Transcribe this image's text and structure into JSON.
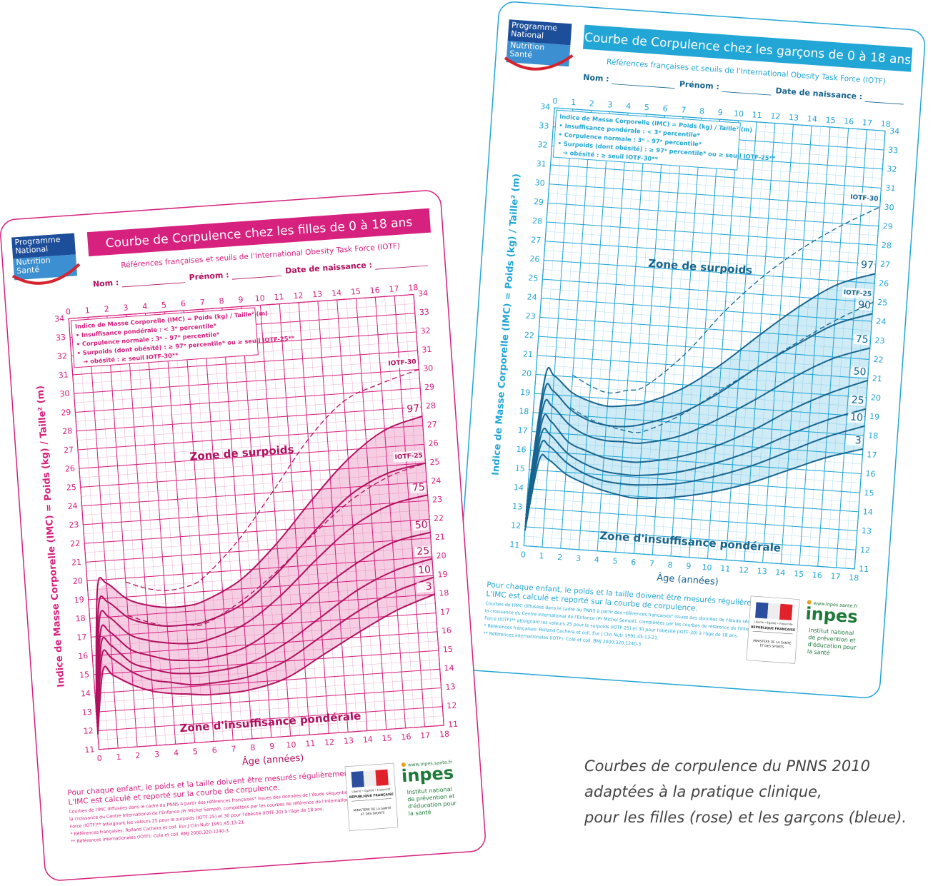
{
  "chart_data": [
    {
      "type": "line",
      "color": "#d6217e",
      "line_color": "#b0105f",
      "title": "Courbe de Corpulence chez les filles de 0 à 18 ans",
      "subtitle": "Références françaises et seuils de l'International Obesity Task Force (IOTF)",
      "logo": [
        "Programme",
        "National",
        "Nutrition",
        "Santé"
      ],
      "form_fields": [
        "Nom :",
        "Prénom :",
        "Date de naissance :"
      ],
      "ylabel": "Indice de Masse Corporelle (IMC) = Poids (kg) / Taille² (m)",
      "xlabel": "Âge (années)",
      "legend_box": [
        "Indice de Masse Corporelle (IMC) = Poids (kg) / Taille² (m)",
        "• Insuffisance pondérale : < 3ᵉ percentile*",
        "• Corpulence normale : 3ᵉ – 97ᵉ percentile*",
        "• Surpoids (dont obésité) : ≥ 97ᵉ percentile* ou ≥ seuil IOTF-25**",
        "➔ obésité : ≥ seuil IOTF-30**"
      ],
      "annotations": [
        "Zone de surpoids",
        "Zone d'insuffisance pondérale"
      ],
      "notes": [
        "Pour chaque enfant, le poids et la taille doivent être mesurés régulièrement.",
        "L'IMC est calculé et reporté sur la courbe de corpulence.",
        "Courbes de l'IMC diffusées dans le cadre du PNNS à partir des références françaises* issues des données de l'étude séquentielle française de",
        "la croissance du Centre International de l'Enfance (Pr Michel Sempé), complétées par les courbes de référence de l'International Obesity Task",
        "Force (IOTF)** atteignant les valeurs 25 pour le surpoids (IOTF-25) et 30 pour l'obésité (IOTF-30) à l'âge de 18 ans.",
        "* Références françaises: Rolland Cachera et coll. Eur J Clin Nutr 1991;45:13-21.",
        "** Références internationales (IOTF): Cole et coll. BMJ 2000;320:1240-3."
      ],
      "ministry": [
        "Liberté • Égalité • Fraternité",
        "RÉPUBLIQUE FRANÇAISE",
        "MINISTÈRE DE LA SANTÉ",
        "ET DES SPORTS"
      ],
      "inpes": [
        "www.inpes.sante.fr",
        "inpes",
        "Institut national",
        "de prévention et",
        "d'éducation pour",
        "la santé"
      ],
      "x": [
        0,
        0.5,
        1,
        2,
        3,
        4,
        5,
        6,
        8,
        10,
        12,
        14,
        16,
        18
      ],
      "series": [
        {
          "name": "97",
          "values": [
            13.0,
            19.5,
            19.8,
            18.9,
            18.5,
            18.3,
            18.3,
            18.5,
            19.5,
            21.3,
            23.5,
            25.5,
            26.9,
            27.5
          ]
        },
        {
          "name": "90",
          "values": [
            12.8,
            18.6,
            18.8,
            17.9,
            17.5,
            17.3,
            17.3,
            17.4,
            18.2,
            19.8,
            21.8,
            23.6,
            24.6,
            25.0
          ]
        },
        {
          "name": "75",
          "values": [
            12.6,
            17.9,
            18.0,
            17.0,
            16.6,
            16.4,
            16.3,
            16.4,
            17.1,
            18.5,
            20.3,
            21.9,
            22.9,
            23.3
          ]
        },
        {
          "name": "50",
          "values": [
            12.4,
            17.2,
            17.2,
            16.2,
            15.8,
            15.5,
            15.4,
            15.4,
            15.9,
            17.1,
            18.6,
            19.9,
            20.9,
            21.3
          ]
        },
        {
          "name": "25",
          "values": [
            12.2,
            16.6,
            16.5,
            15.5,
            15.1,
            14.8,
            14.7,
            14.7,
            15.0,
            15.9,
            17.2,
            18.5,
            19.4,
            19.9
          ]
        },
        {
          "name": "10",
          "values": [
            12.0,
            16.0,
            15.8,
            15.0,
            14.5,
            14.3,
            14.1,
            14.1,
            14.3,
            15.0,
            16.2,
            17.4,
            18.3,
            18.9
          ]
        },
        {
          "name": "3",
          "values": [
            11.8,
            15.2,
            14.9,
            14.3,
            13.9,
            13.7,
            13.6,
            13.5,
            13.6,
            14.1,
            15.2,
            16.3,
            17.3,
            18.0
          ]
        },
        {
          "name": "IOTF-25",
          "style": "dashed",
          "values": [
            null,
            null,
            null,
            18.0,
            17.6,
            17.3,
            17.3,
            17.3,
            18.4,
            19.9,
            21.7,
            23.3,
            24.4,
            25.0
          ]
        },
        {
          "name": "IOTF-30",
          "style": "dashed",
          "values": [
            null,
            null,
            null,
            19.8,
            19.4,
            19.2,
            19.3,
            19.7,
            21.6,
            24.1,
            26.7,
            28.6,
            29.4,
            30.0
          ]
        }
      ],
      "xlim": [
        0,
        18
      ],
      "ylim": [
        11,
        34
      ],
      "xticks": [
        0,
        1,
        2,
        3,
        4,
        5,
        6,
        7,
        8,
        9,
        10,
        11,
        12,
        13,
        14,
        15,
        16,
        17,
        18
      ],
      "yticks": [
        11,
        12,
        13,
        14,
        15,
        16,
        17,
        18,
        19,
        20,
        21,
        22,
        23,
        24,
        25,
        26,
        27,
        28,
        29,
        30,
        31,
        32,
        33,
        34
      ],
      "grid": true
    },
    {
      "type": "line",
      "color": "#22a6d6",
      "line_color": "#17648f",
      "title": "Courbe de Corpulence chez les garçons de 0 à 18 ans",
      "subtitle": "Références françaises et seuils de l'International Obesity Task Force (IOTF)",
      "logo": [
        "Programme",
        "National",
        "Nutrition",
        "Santé"
      ],
      "form_fields": [
        "Nom :",
        "Prénom :",
        "Date de naissance :"
      ],
      "ylabel": "Indice de Masse Corporelle (IMC) = Poids (kg) / Taille² (m)",
      "xlabel": "Âge (années)",
      "legend_box": [
        "Indice de Masse Corporelle (IMC) = Poids (kg) / Taille² (m)",
        "• Insuffisance pondérale : < 3ᵉ percentile*",
        "• Corpulence normale : 3ᵉ – 97ᵉ percentile*",
        "• Surpoids (dont obésité) : ≥ 97ᵉ percentile* ou ≥ seuil IOTF-25**",
        "➔ obésité : ≥ seuil IOTF-30**"
      ],
      "annotations": [
        "Zone de surpoids",
        "Zone d'insuffisance pondérale"
      ],
      "notes": [
        "Pour chaque enfant, le poids et la taille doivent être mesurés régulièrement.",
        "L'IMC est calculé et reporté sur la courbe de corpulence.",
        "Courbes de l'IMC diffusées dans le cadre du PNNS à partir des références françaises* issues des données de l'étude séquentielle française de",
        "la croissance du Centre International de l'Enfance (Pr Michel Sempé), complétées par les courbes de référence de l'International Obesity Task",
        "Force (IOTF)** atteignant les valeurs 25 pour le surpoids (IOTF-25) et 30 pour l'obésité (IOTF-30) à l'âge de 18 ans.",
        "* Références françaises: Rolland Cachera et coll. Eur J Clin Nutr 1991;45:13-21.",
        "** Références internationales (IOTF): Cole et coll. BMJ 2000;320:1240-3."
      ],
      "ministry": [
        "Liberté • Égalité • Fraternité",
        "RÉPUBLIQUE FRANÇAISE",
        "MINISTÈRE DE LA SANTÉ",
        "ET DES SPORTS"
      ],
      "inpes": [
        "www.inpes.sante.fr",
        "inpes",
        "Institut national",
        "de prévention et",
        "d'éducation pour",
        "la santé"
      ],
      "x": [
        0,
        0.5,
        1,
        2,
        3,
        4,
        5,
        6,
        8,
        10,
        12,
        14,
        16,
        18
      ],
      "series": [
        {
          "name": "97",
          "values": [
            13.0,
            19.8,
            20.0,
            19.2,
            18.8,
            18.6,
            18.7,
            18.9,
            19.8,
            21.2,
            22.9,
            24.5,
            25.8,
            26.5
          ]
        },
        {
          "name": "90",
          "values": [
            12.8,
            19.0,
            19.2,
            18.3,
            17.8,
            17.6,
            17.6,
            17.8,
            18.5,
            19.7,
            21.2,
            22.5,
            23.7,
            24.4
          ]
        },
        {
          "name": "75",
          "values": [
            12.6,
            18.2,
            18.4,
            17.5,
            17.0,
            16.8,
            16.8,
            16.8,
            17.3,
            18.3,
            19.5,
            20.8,
            21.9,
            22.6
          ]
        },
        {
          "name": "50",
          "values": [
            12.4,
            17.5,
            17.6,
            16.6,
            16.2,
            15.9,
            15.8,
            15.8,
            16.2,
            16.9,
            17.9,
            19.1,
            20.1,
            20.9
          ]
        },
        {
          "name": "25",
          "values": [
            12.2,
            16.8,
            16.9,
            16.0,
            15.5,
            15.2,
            15.1,
            15.1,
            15.4,
            16.0,
            16.8,
            17.8,
            18.7,
            19.4
          ]
        },
        {
          "name": "10",
          "values": [
            12.0,
            16.2,
            16.3,
            15.5,
            15.0,
            14.7,
            14.6,
            14.6,
            14.8,
            15.3,
            16.0,
            16.9,
            17.8,
            18.5
          ]
        },
        {
          "name": "3",
          "values": [
            11.8,
            15.5,
            15.6,
            14.9,
            14.5,
            14.2,
            14.0,
            13.9,
            14.1,
            14.5,
            15.1,
            15.9,
            16.7,
            17.3
          ]
        },
        {
          "name": "IOTF-25",
          "style": "dashed",
          "values": [
            null,
            null,
            null,
            18.4,
            17.9,
            17.6,
            17.4,
            17.4,
            18.4,
            19.8,
            21.2,
            22.6,
            23.9,
            25.0
          ]
        },
        {
          "name": "IOTF-30",
          "style": "dashed",
          "values": [
            null,
            null,
            null,
            20.1,
            19.6,
            19.3,
            19.5,
            19.8,
            21.6,
            24.0,
            26.0,
            27.6,
            28.9,
            30.0
          ]
        }
      ],
      "xlim": [
        0,
        18
      ],
      "ylim": [
        11,
        34
      ],
      "xticks": [
        0,
        1,
        2,
        3,
        4,
        5,
        6,
        7,
        8,
        9,
        10,
        11,
        12,
        13,
        14,
        15,
        16,
        17,
        18
      ],
      "yticks": [
        11,
        12,
        13,
        14,
        15,
        16,
        17,
        18,
        19,
        20,
        21,
        22,
        23,
        24,
        25,
        26,
        27,
        28,
        29,
        30,
        31,
        32,
        33,
        34
      ],
      "grid": true
    }
  ],
  "caption": [
    "Courbes de corpulence du PNNS 2010",
    "adaptées à la pratique clinique,",
    "pour les filles (rose) et les garçons (bleue)."
  ]
}
